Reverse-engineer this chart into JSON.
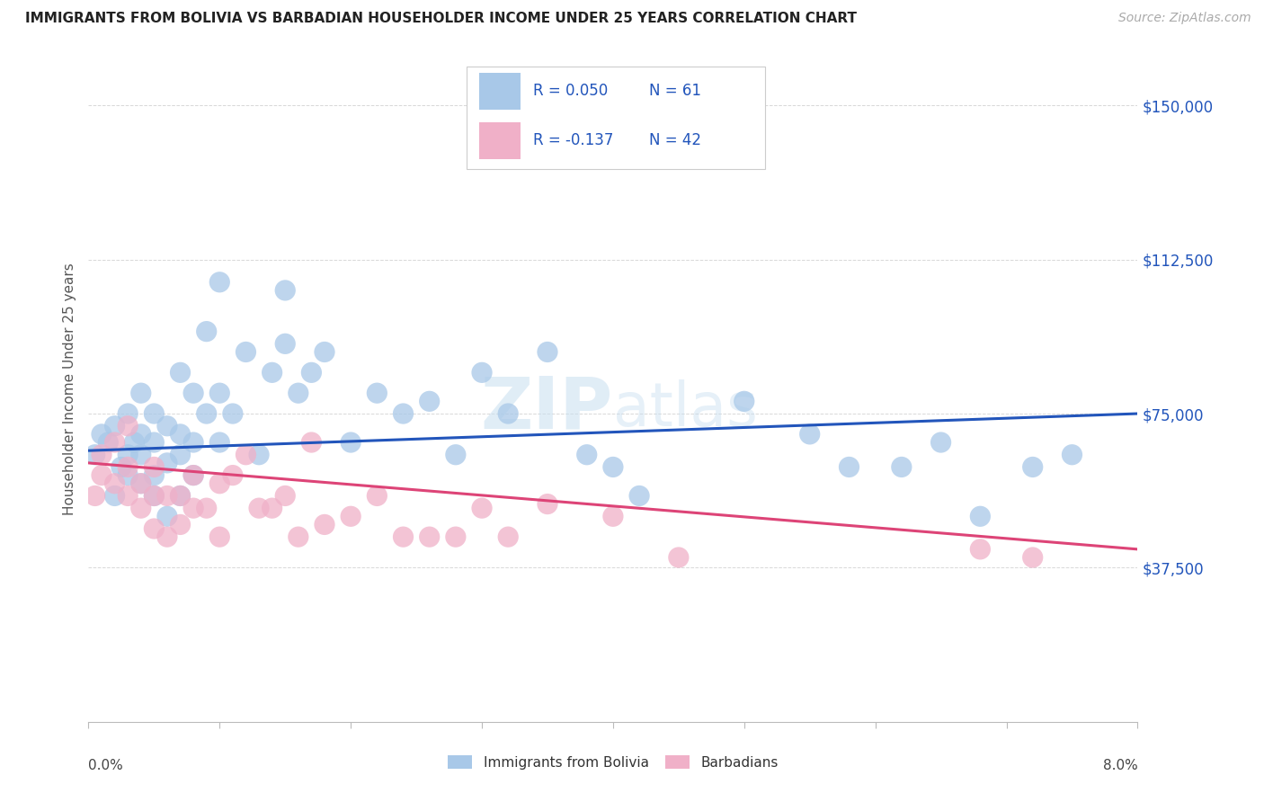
{
  "title": "IMMIGRANTS FROM BOLIVIA VS BARBADIAN HOUSEHOLDER INCOME UNDER 25 YEARS CORRELATION CHART",
  "source": "Source: ZipAtlas.com",
  "ylabel": "Householder Income Under 25 years",
  "watermark": "ZIPatlas",
  "legend_blue_r": "0.050",
  "legend_blue_n": "61",
  "legend_pink_r": "-0.137",
  "legend_pink_n": "42",
  "legend_label_blue": "Immigrants from Bolivia",
  "legend_label_pink": "Barbadians",
  "yticks": [
    0,
    37500,
    75000,
    112500,
    150000
  ],
  "ytick_labels": [
    "",
    "$37,500",
    "$75,000",
    "$112,500",
    "$150,000"
  ],
  "xlim": [
    0.0,
    0.08
  ],
  "ylim": [
    0,
    162000
  ],
  "blue_color": "#a8c8e8",
  "pink_color": "#f0b0c8",
  "blue_line_color": "#2255bb",
  "pink_line_color": "#dd4477",
  "grid_color": "#d8d8d8",
  "blue_line_x0": 0.0,
  "blue_line_y0": 66000,
  "blue_line_x1": 0.08,
  "blue_line_y1": 75000,
  "pink_line_x0": 0.0,
  "pink_line_y0": 63000,
  "pink_line_x1": 0.08,
  "pink_line_y1": 42000,
  "blue_scatter_x": [
    0.0005,
    0.001,
    0.0015,
    0.002,
    0.002,
    0.0025,
    0.003,
    0.003,
    0.003,
    0.0035,
    0.004,
    0.004,
    0.004,
    0.004,
    0.005,
    0.005,
    0.005,
    0.005,
    0.006,
    0.006,
    0.006,
    0.007,
    0.007,
    0.007,
    0.007,
    0.008,
    0.008,
    0.008,
    0.009,
    0.009,
    0.01,
    0.01,
    0.01,
    0.011,
    0.012,
    0.013,
    0.014,
    0.015,
    0.015,
    0.016,
    0.017,
    0.018,
    0.02,
    0.022,
    0.024,
    0.026,
    0.028,
    0.03,
    0.032,
    0.035,
    0.038,
    0.04,
    0.042,
    0.05,
    0.055,
    0.058,
    0.062,
    0.065,
    0.068,
    0.072,
    0.075
  ],
  "blue_scatter_y": [
    65000,
    70000,
    68000,
    55000,
    72000,
    62000,
    60000,
    65000,
    75000,
    68000,
    58000,
    65000,
    70000,
    80000,
    55000,
    60000,
    68000,
    75000,
    50000,
    63000,
    72000,
    55000,
    65000,
    70000,
    85000,
    60000,
    68000,
    80000,
    75000,
    95000,
    68000,
    80000,
    107000,
    75000,
    90000,
    65000,
    85000,
    92000,
    105000,
    80000,
    85000,
    90000,
    68000,
    80000,
    75000,
    78000,
    65000,
    85000,
    75000,
    90000,
    65000,
    62000,
    55000,
    78000,
    70000,
    62000,
    62000,
    68000,
    50000,
    62000,
    65000
  ],
  "pink_scatter_x": [
    0.0005,
    0.001,
    0.001,
    0.002,
    0.002,
    0.003,
    0.003,
    0.003,
    0.004,
    0.004,
    0.005,
    0.005,
    0.005,
    0.006,
    0.006,
    0.007,
    0.007,
    0.008,
    0.008,
    0.009,
    0.01,
    0.01,
    0.011,
    0.012,
    0.013,
    0.014,
    0.015,
    0.016,
    0.017,
    0.018,
    0.02,
    0.022,
    0.024,
    0.026,
    0.028,
    0.03,
    0.032,
    0.035,
    0.04,
    0.045,
    0.068,
    0.072
  ],
  "pink_scatter_y": [
    55000,
    60000,
    65000,
    58000,
    68000,
    55000,
    62000,
    72000,
    52000,
    58000,
    47000,
    55000,
    62000,
    45000,
    55000,
    48000,
    55000,
    52000,
    60000,
    52000,
    45000,
    58000,
    60000,
    65000,
    52000,
    52000,
    55000,
    45000,
    68000,
    48000,
    50000,
    55000,
    45000,
    45000,
    45000,
    52000,
    45000,
    53000,
    50000,
    40000,
    42000,
    40000
  ]
}
